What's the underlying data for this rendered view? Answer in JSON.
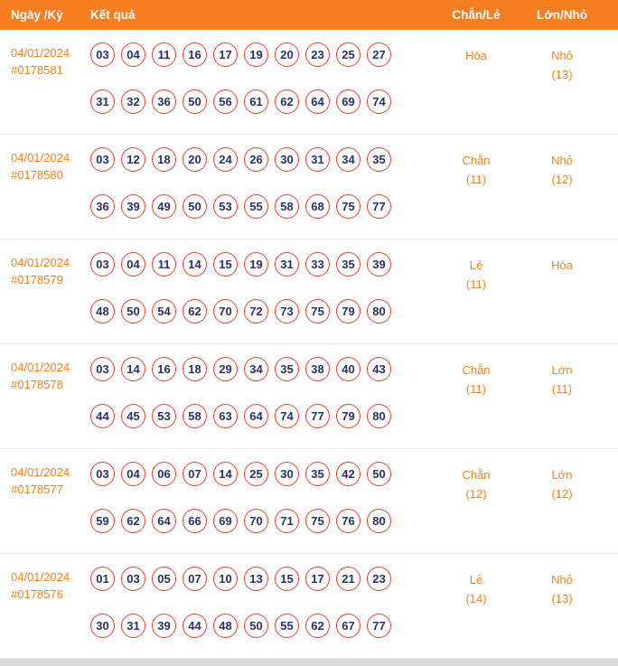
{
  "table": {
    "headers": {
      "date_period": "Ngày /Kỳ",
      "result": "Kết quả",
      "even_odd": "Chẵn/Lẻ",
      "big_small": "Lớn/Nhỏ"
    }
  },
  "colors": {
    "header_bg": "#F57E20",
    "accent": "#F5821F",
    "ball_border": "#E8432D",
    "ball_text": "#2C2E6B",
    "row_divider": "#ECECEC"
  },
  "rows": [
    {
      "date": "04/01/2024",
      "period": "#0178581",
      "numbers": [
        "03",
        "04",
        "11",
        "16",
        "17",
        "19",
        "20",
        "23",
        "25",
        "27",
        "31",
        "32",
        "36",
        "50",
        "56",
        "61",
        "62",
        "64",
        "69",
        "74"
      ],
      "even_odd": "Hòa",
      "even_odd_count": "",
      "big_small": "Nhỏ",
      "big_small_count": "(13)"
    },
    {
      "date": "04/01/2024",
      "period": "#0178580",
      "numbers": [
        "03",
        "12",
        "18",
        "20",
        "24",
        "26",
        "30",
        "31",
        "34",
        "35",
        "36",
        "39",
        "49",
        "50",
        "53",
        "55",
        "58",
        "68",
        "75",
        "77"
      ],
      "even_odd": "Chẵn",
      "even_odd_count": "(11)",
      "big_small": "Nhỏ",
      "big_small_count": "(12)"
    },
    {
      "date": "04/01/2024",
      "period": "#0178579",
      "numbers": [
        "03",
        "04",
        "11",
        "14",
        "15",
        "19",
        "31",
        "33",
        "35",
        "39",
        "48",
        "50",
        "54",
        "62",
        "70",
        "72",
        "73",
        "75",
        "79",
        "80"
      ],
      "even_odd": "Lẻ",
      "even_odd_count": "(11)",
      "big_small": "Hòa",
      "big_small_count": ""
    },
    {
      "date": "04/01/2024",
      "period": "#0178578",
      "numbers": [
        "03",
        "14",
        "16",
        "18",
        "29",
        "34",
        "35",
        "38",
        "40",
        "43",
        "44",
        "45",
        "53",
        "58",
        "63",
        "64",
        "74",
        "77",
        "79",
        "80"
      ],
      "even_odd": "Chẵn",
      "even_odd_count": "(11)",
      "big_small": "Lớn",
      "big_small_count": "(11)"
    },
    {
      "date": "04/01/2024",
      "period": "#0178577",
      "numbers": [
        "03",
        "04",
        "06",
        "07",
        "14",
        "25",
        "30",
        "35",
        "42",
        "50",
        "59",
        "62",
        "64",
        "66",
        "69",
        "70",
        "71",
        "75",
        "76",
        "80"
      ],
      "even_odd": "Chẵn",
      "even_odd_count": "(12)",
      "big_small": "Lớn",
      "big_small_count": "(12)"
    },
    {
      "date": "04/01/2024",
      "period": "#0178576",
      "numbers": [
        "01",
        "03",
        "05",
        "07",
        "10",
        "13",
        "15",
        "17",
        "21",
        "23",
        "30",
        "31",
        "39",
        "44",
        "48",
        "50",
        "55",
        "62",
        "67",
        "77"
      ],
      "even_odd": "Lẻ",
      "even_odd_count": "(14)",
      "big_small": "Nhỏ",
      "big_small_count": "(13)"
    }
  ]
}
